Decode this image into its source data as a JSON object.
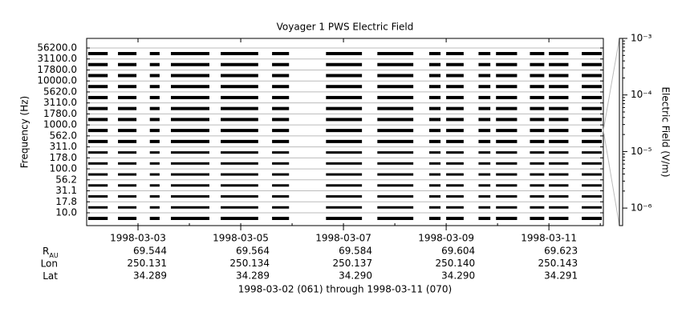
{
  "chart_data": {
    "type": "spectrogram",
    "title": "Voyager 1 PWS Electric Field",
    "ylabel": "Frequency (Hz)",
    "categories": [
      "10.0",
      "17.8",
      "31.1",
      "56.2",
      "100.0",
      "178.0",
      "311.0",
      "562.0",
      "1000.0",
      "1780.0",
      "3110.0",
      "5620.0",
      "10000.0",
      "17800.0",
      "31100.0",
      "56200.0"
    ],
    "xlim": [
      0,
      10.06
    ],
    "xticks": [
      {
        "value": 1,
        "label": "1998-03-03"
      },
      {
        "value": 3,
        "label": "1998-03-05"
      },
      {
        "value": 5,
        "label": "1998-03-07"
      },
      {
        "value": 7,
        "label": "1998-03-09"
      },
      {
        "value": 9,
        "label": "1998-03-11"
      }
    ],
    "coverage": [
      [
        0.03,
        0.41
      ],
      [
        0.61,
        0.97
      ],
      [
        1.23,
        1.42
      ],
      [
        1.64,
        2.39
      ],
      [
        2.61,
        3.34
      ],
      [
        3.61,
        3.94
      ],
      [
        4.66,
        5.36
      ],
      [
        5.66,
        6.36
      ],
      [
        6.67,
        6.89
      ],
      [
        7.0,
        7.34
      ],
      [
        7.63,
        7.86
      ],
      [
        7.97,
        8.38
      ],
      [
        8.63,
        8.91
      ],
      [
        9.0,
        9.38
      ],
      [
        9.64,
        10.03
      ]
    ],
    "color": "#000000",
    "colorbar": {
      "label": "Electric Field (V/m)",
      "log": true,
      "lim": [
        4.9e-07,
        0.001
      ],
      "ticks": [
        {
          "value": 0.001,
          "label": "10⁻³"
        },
        {
          "value": 0.0001,
          "label": "10⁻⁴"
        },
        {
          "value": 1e-05,
          "label": "10⁻⁵"
        },
        {
          "value": 1e-06,
          "label": "10⁻⁶"
        }
      ]
    },
    "ephemeris": [
      {
        "label": "R",
        "subscript": "AU",
        "values": [
          "69.544",
          "69.564",
          "69.584",
          "69.604",
          "69.623"
        ]
      },
      {
        "label": "Lon",
        "values": [
          "250.131",
          "250.134",
          "250.137",
          "250.140",
          "250.143"
        ]
      },
      {
        "label": "Lat",
        "values": [
          "34.289",
          "34.289",
          "34.290",
          "34.290",
          "34.291"
        ]
      }
    ],
    "footer": "1998-03-02 (061) through 1998-03-11 (070)"
  }
}
